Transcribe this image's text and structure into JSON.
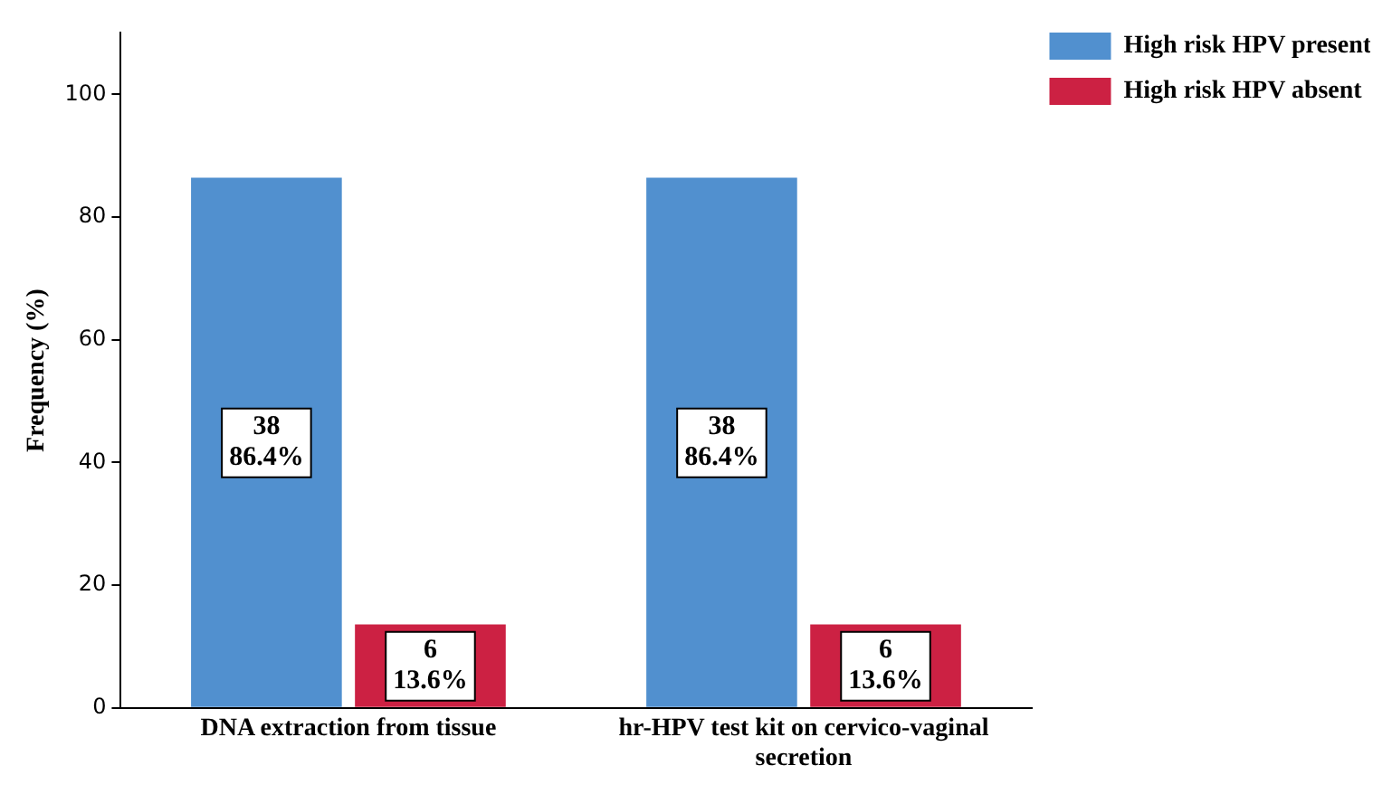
{
  "chart_data": {
    "type": "bar",
    "ylabel": "Frequency (%)",
    "categories": [
      "DNA extraction from tissue",
      "hr-HPV test kit on cervico-vaginal secretion"
    ],
    "series": [
      {
        "name": "High risk HPV present",
        "color": "#5190cf",
        "values": [
          86.4,
          86.4
        ],
        "value_labels": [
          "38\n86.4%",
          "38\n86.4%"
        ]
      },
      {
        "name": "High risk HPV absent",
        "color": "#cc2143",
        "values": [
          13.6,
          13.6
        ],
        "value_labels": [
          "6\n13.6%",
          "6\n13.6%"
        ]
      }
    ],
    "ylim": [
      0,
      110
    ],
    "yticks": [
      0,
      20,
      40,
      60,
      80,
      100
    ],
    "grid": false,
    "legend": "top right"
  }
}
